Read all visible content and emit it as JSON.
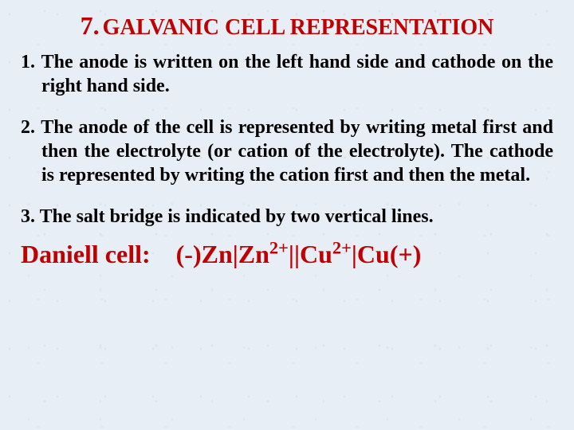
{
  "title": {
    "number": "7.",
    "text": "GALVANIC CELL REPRESENTATION",
    "number_fontsize": 32,
    "text_fontsize": 28,
    "color": "#c00000"
  },
  "rules": [
    {
      "num": "1.",
      "text": "The anode is written on the left hand side and cathode on the right hand side.",
      "indent": true
    },
    {
      "num": "2.",
      "text": "The anode of the cell is represented by writing metal first and then the electrolyte (or cation of the electrolyte). The cathode is represented by writing the cation first and then the metal.",
      "indent": true
    },
    {
      "num": "3.",
      "text": "The salt bridge is indicated by two vertical lines.",
      "indent": false
    }
  ],
  "rule_style": {
    "fontsize": 24,
    "color": "#000000",
    "spacing_after": 22
  },
  "formula": {
    "label": "Daniell cell:",
    "parts": [
      {
        "t": "(-)Zn|Zn"
      },
      {
        "t": "2+",
        "sup": true
      },
      {
        "t": "||Cu"
      },
      {
        "t": "2+",
        "sup": true
      },
      {
        "t": "|Cu(+)"
      }
    ],
    "fontsize": 32,
    "color": "#c00000",
    "top_spacing": 14
  },
  "background_color": "#e8eef5"
}
